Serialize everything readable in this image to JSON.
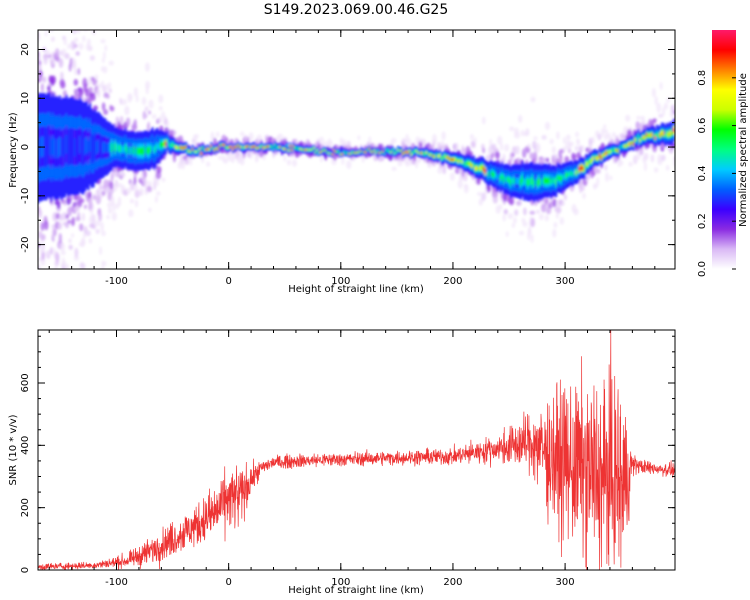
{
  "title": "S149.2023.069.00.46.G25",
  "chart_data": [
    {
      "type": "heatmap",
      "xlabel": "Height of straight line (km)",
      "ylabel": "Frequency (Hz)",
      "xlim": [
        -170,
        398
      ],
      "ylim": [
        -25,
        24
      ],
      "x_ticks": [
        -100,
        0,
        100,
        200,
        300
      ],
      "y_ticks": [
        -20,
        -10,
        0,
        10,
        20
      ],
      "colorbar": {
        "label": "Normalized spectral amplitude",
        "range": [
          0,
          1
        ],
        "ticks": [
          "0.0",
          "0.2",
          "0.4",
          "0.6",
          "0.8"
        ],
        "tick_values": [
          0,
          0.2,
          0.4,
          0.6,
          0.8
        ],
        "colors": [
          "#ffffff",
          "#d9b8f5",
          "#8a2be2",
          "#3a00ff",
          "#0060ff",
          "#00ccff",
          "#00ff80",
          "#00ff00",
          "#ccff00",
          "#ffff00",
          "#ff8000",
          "#ff0000",
          "#ff1a6a"
        ]
      },
      "frequency_track": {
        "x": [
          -170,
          -130,
          -100,
          -80,
          -65,
          -55,
          -45,
          -30,
          -10,
          10,
          50,
          90,
          130,
          150,
          170,
          190,
          210,
          230,
          250,
          270,
          290,
          310,
          330,
          350,
          370,
          398
        ],
        "y": [
          0,
          0,
          0,
          -1,
          0,
          1,
          0,
          -1,
          0,
          0,
          0,
          -1,
          -1,
          -1,
          -1,
          -2,
          -3,
          -5,
          -7,
          -7,
          -7,
          -5,
          -2,
          0,
          2,
          3
        ],
        "spread_hz": [
          14,
          12,
          5,
          5,
          5,
          2.5,
          1.5,
          1.2,
          1,
          1,
          1,
          0.8,
          0.8,
          1,
          1.2,
          1.5,
          2,
          3,
          4,
          5,
          4,
          3,
          2,
          1.5,
          2,
          3
        ]
      }
    },
    {
      "type": "line",
      "xlabel": "Height of straight line (km)",
      "ylabel": "SNR (10 * v/v)",
      "xlim": [
        -170,
        398
      ],
      "ylim": [
        0,
        770
      ],
      "x_ticks": [
        -100,
        0,
        100,
        200,
        300
      ],
      "y_ticks": [
        0,
        200,
        400,
        600
      ],
      "color": "#ee3333",
      "envelope": {
        "x": [
          -170,
          -120,
          -90,
          -70,
          -50,
          -30,
          -10,
          0,
          10,
          20,
          30,
          40,
          60,
          100,
          150,
          200,
          240,
          270,
          290,
          310,
          330,
          340,
          350,
          355,
          360,
          370,
          398
        ],
        "mean": [
          10,
          15,
          30,
          60,
          100,
          140,
          190,
          230,
          230,
          290,
          330,
          345,
          350,
          355,
          360,
          365,
          390,
          410,
          360,
          330,
          300,
          300,
          280,
          290,
          340,
          330,
          320
        ],
        "noise": [
          10,
          10,
          20,
          40,
          50,
          60,
          80,
          90,
          100,
          40,
          20,
          20,
          20,
          20,
          20,
          25,
          40,
          90,
          200,
          240,
          280,
          300,
          280,
          200,
          30,
          20,
          20
        ]
      }
    }
  ]
}
